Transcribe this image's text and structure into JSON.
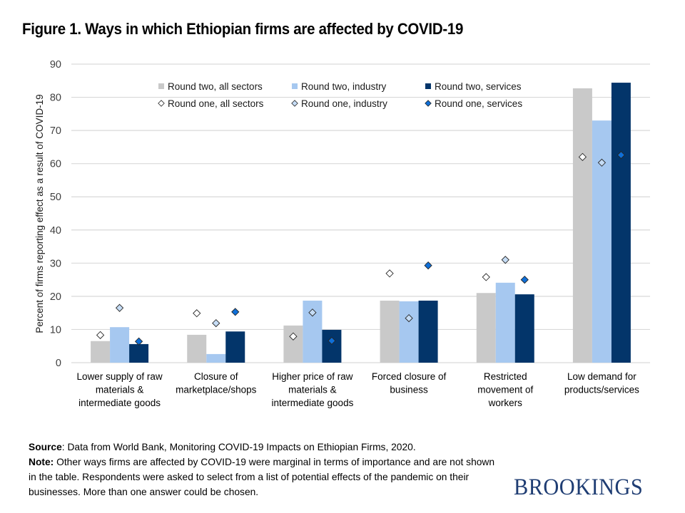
{
  "title": "Figure 1. Ways in which Ethiopian firms are affected by COVID-19",
  "chart_data": {
    "type": "bar",
    "title": "Figure 1. Ways in which Ethiopian firms are affected by COVID-19",
    "xlabel": "",
    "ylabel": "Percent of firms reporting effect as a result of COVID-19",
    "ylim": [
      0,
      90
    ],
    "yticks": [
      0,
      10,
      20,
      30,
      40,
      50,
      60,
      70,
      80,
      90
    ],
    "grid": true,
    "legend_position": "top-center",
    "categories": [
      "Lower supply of raw materials & intermediate goods",
      "Closure of marketplace/shops",
      "Higher price of raw materials & intermediate goods",
      "Forced closure of business",
      "Restricted movement of workers",
      "Low demand for products/services"
    ],
    "category_lines": [
      [
        "Lower supply of raw",
        "materials &",
        "intermediate goods"
      ],
      [
        "Closure of",
        "marketplace/shops"
      ],
      [
        "Higher price of raw",
        "materials &",
        "intermediate goods"
      ],
      [
        "Forced closure of",
        "business"
      ],
      [
        "Restricted",
        "movement of",
        "workers"
      ],
      [
        "Low demand for",
        "products/services"
      ]
    ],
    "series": [
      {
        "name": "Round two, all sectors",
        "kind": "bar",
        "color": "#c9c9c9",
        "values": [
          6.5,
          8.4,
          11.2,
          18.7,
          21.0,
          82.7
        ]
      },
      {
        "name": "Round two, industry",
        "kind": "bar",
        "color": "#a6c8f0",
        "values": [
          10.7,
          2.6,
          18.7,
          18.5,
          24.1,
          73.0
        ]
      },
      {
        "name": "Round two, services",
        "kind": "bar",
        "color": "#03356a",
        "values": [
          5.6,
          9.4,
          9.9,
          18.7,
          20.6,
          84.4
        ]
      },
      {
        "name": "Round one, all sectors",
        "kind": "marker",
        "color": "#ffffff",
        "values": [
          8.3,
          14.9,
          7.9,
          26.9,
          25.8,
          62.0
        ]
      },
      {
        "name": "Round one, industry",
        "kind": "marker",
        "color": "#c5dcf5",
        "values": [
          16.5,
          11.9,
          15.1,
          13.4,
          31.0,
          60.3
        ]
      },
      {
        "name": "Round one, services",
        "kind": "marker",
        "color": "#0f6fd8",
        "values": [
          6.4,
          15.3,
          6.6,
          29.3,
          25.0,
          62.6
        ]
      }
    ]
  },
  "footer": {
    "source_label": "Source",
    "source_text": ": Data from World Bank, Monitoring COVID-19 Impacts on Ethiopian Firms, 2020.",
    "note_label": "Note:",
    "note_text": " Other ways firms are affected by COVID-19 were marginal in terms of importance and are not shown in the table. Respondents were asked to select from a list of potential effects of the pandemic on their businesses. More than one answer could be chosen."
  },
  "logo": "BROOKINGS"
}
